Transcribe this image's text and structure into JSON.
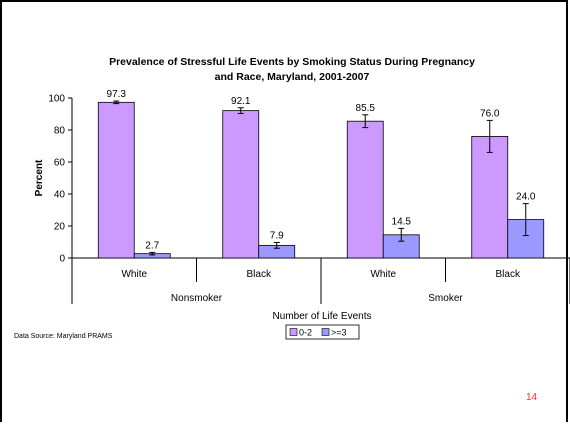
{
  "slide": {
    "number": "14",
    "source_note": "Data Source: Maryland PRAMS"
  },
  "chart_data": {
    "type": "bar",
    "title_lines": [
      "Prevalence of Stressful Life Events by Smoking Status During Pregnancy",
      "and Race, Maryland, 2001-2007"
    ],
    "ylabel": "Percent",
    "xlabel": "Number of Life Events",
    "ylim": [
      0,
      100
    ],
    "yticks": [
      0,
      20,
      40,
      60,
      80,
      100
    ],
    "categories": [
      "White",
      "Black",
      "White",
      "Black"
    ],
    "groups": [
      {
        "label": "Nonsmoker",
        "categories": [
          "White",
          "Black"
        ]
      },
      {
        "label": "Smoker",
        "categories": [
          "White",
          "Black"
        ]
      }
    ],
    "series": [
      {
        "name": "0-2",
        "color": "#cc99ff",
        "values": [
          97.3,
          92.1,
          85.5,
          76.0
        ],
        "labels": [
          "97.3",
          "92.1",
          "85.5",
          "76.0"
        ],
        "error_low": [
          96.5,
          90.3,
          81.5,
          66.0
        ],
        "error_high": [
          98.1,
          93.9,
          89.5,
          86.0
        ]
      },
      {
        "name": ">=3",
        "color": "#9999ff",
        "values": [
          2.7,
          7.9,
          14.5,
          24.0
        ],
        "labels": [
          "2.7",
          "7.9",
          "14.5",
          "24.0"
        ],
        "error_low": [
          1.9,
          6.1,
          10.5,
          14.0
        ],
        "error_high": [
          3.5,
          9.7,
          18.5,
          34.0
        ]
      }
    ],
    "legend_position": "bottom-center",
    "grid": false
  }
}
